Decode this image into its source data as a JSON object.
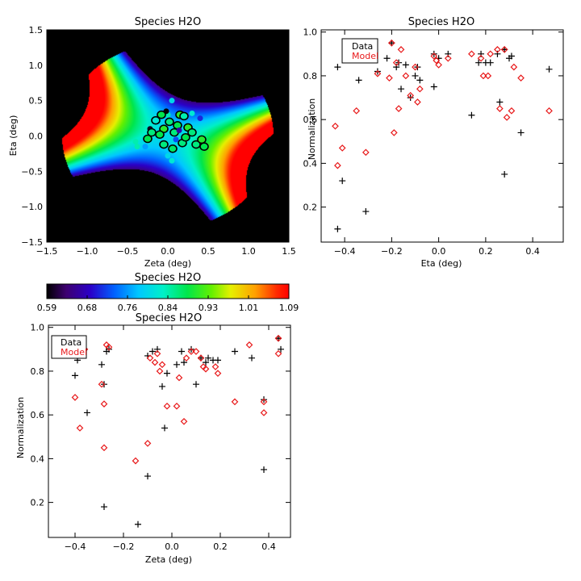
{
  "chart_data": [
    {
      "id": "map",
      "type": "heatmap",
      "title": "Species H2O",
      "xlabel": "Zeta (deg)",
      "ylabel": "Eta (deg)",
      "xlim": [
        -1.5,
        1.5
      ],
      "ylim": [
        -1.5,
        1.5
      ],
      "xticks": [
        -1.5,
        -1.0,
        -0.5,
        0.0,
        0.5,
        1.0,
        1.5
      ],
      "xtick_labels": [
        "−1.5",
        "−1.0",
        "−0.5",
        "0.0",
        "0.5",
        "1.0",
        "1.5"
      ],
      "yticks": [
        -1.5,
        -1.0,
        -0.5,
        0.0,
        0.5,
        1.0,
        1.5
      ],
      "ytick_labels": [
        "−1.5",
        "−1.0",
        "−0.5",
        "0.0",
        "0.5",
        "1.0",
        "1.5"
      ],
      "colorbar": {
        "min": 0.59,
        "max": 1.09,
        "tick_labels": [
          "0.59",
          "0.68",
          "0.76",
          "0.84",
          "0.93",
          "1.01",
          "1.09"
        ]
      },
      "points": [
        {
          "zeta": -0.4,
          "eta": -0.08,
          "value": 0.84
        },
        {
          "zeta": -0.38,
          "eta": -0.15,
          "value": 0.84
        },
        {
          "zeta": -0.3,
          "eta": -0.08,
          "value": 0.8
        },
        {
          "zeta": -0.28,
          "eta": -0.15,
          "value": 0.76
        },
        {
          "zeta": -0.25,
          "eta": -0.04,
          "value": 0.88,
          "ring": true
        },
        {
          "zeta": -0.22,
          "eta": 0.1,
          "value": 0.6
        },
        {
          "zeta": -0.2,
          "eta": 0.05,
          "value": 0.86,
          "ring": true
        },
        {
          "zeta": -0.15,
          "eta": 0.22,
          "value": 0.82,
          "ring": true
        },
        {
          "zeta": -0.05,
          "eta": 0.1,
          "value": 0.9,
          "ring": true
        },
        {
          "zeta": 0.0,
          "eta": 0.3,
          "value": 0.84
        },
        {
          "zeta": -0.02,
          "eta": 0.35,
          "value": 0.59
        },
        {
          "zeta": 0.02,
          "eta": 0.2,
          "value": 0.86,
          "ring": true
        },
        {
          "zeta": 0.05,
          "eta": 0.5,
          "value": 0.8
        },
        {
          "zeta": 0.08,
          "eta": 0.05,
          "value": 0.86,
          "ring": true
        },
        {
          "zeta": 0.1,
          "eta": -0.05,
          "value": 0.72
        },
        {
          "zeta": 0.12,
          "eta": 0.15,
          "value": 0.88,
          "ring": true
        },
        {
          "zeta": 0.15,
          "eta": 0.3,
          "value": 0.9,
          "ring": true
        },
        {
          "zeta": 0.18,
          "eta": -0.1,
          "value": 0.86,
          "ring": true
        },
        {
          "zeta": 0.2,
          "eta": 0.28,
          "value": 0.84,
          "ring": true
        },
        {
          "zeta": 0.22,
          "eta": -0.02,
          "value": 0.88,
          "ring": true
        },
        {
          "zeta": 0.25,
          "eta": 0.12,
          "value": 0.9,
          "ring": true
        },
        {
          "zeta": 0.3,
          "eta": 0.32,
          "value": 0.82
        },
        {
          "zeta": 0.3,
          "eta": 0.05,
          "value": 0.86,
          "ring": true
        },
        {
          "zeta": 0.35,
          "eta": -0.12,
          "value": 0.86,
          "ring": true
        },
        {
          "zeta": 0.4,
          "eta": 0.25,
          "value": 0.7
        },
        {
          "zeta": 0.42,
          "eta": -0.05,
          "value": 0.9,
          "ring": true
        },
        {
          "zeta": 0.45,
          "eta": -0.15,
          "value": 0.88,
          "ring": true
        },
        {
          "zeta": -0.05,
          "eta": -0.12,
          "value": 0.86,
          "ring": true
        },
        {
          "zeta": 0.0,
          "eta": -0.28,
          "value": 0.8
        },
        {
          "zeta": 0.05,
          "eta": -0.35,
          "value": 0.82
        },
        {
          "zeta": -0.1,
          "eta": 0.02,
          "value": 0.88,
          "ring": true
        },
        {
          "zeta": 0.06,
          "eta": -0.18,
          "value": 0.87,
          "ring": true
        },
        {
          "zeta": -0.08,
          "eta": 0.3,
          "value": 0.88,
          "ring": true
        },
        {
          "zeta": 0.14,
          "eta": 0.08,
          "value": 0.66
        }
      ]
    },
    {
      "id": "eta",
      "type": "scatter",
      "title": "Species H2O",
      "xlabel": "Eta (deg)",
      "ylabel": "Normalization",
      "xlim": [
        -0.5,
        0.53
      ],
      "ylim": [
        0.04,
        1.01
      ],
      "xticks": [
        -0.4,
        -0.2,
        0.0,
        0.2,
        0.4
      ],
      "xtick_labels": [
        "−0.4",
        "−0.2",
        "0.0",
        "0.2",
        "0.4"
      ],
      "yticks": [
        0.2,
        0.4,
        0.6,
        0.8,
        1.0
      ],
      "ytick_labels": [
        "0.2",
        "0.4",
        "0.6",
        "0.8",
        "1.0"
      ],
      "legend": {
        "data_label": "Data",
        "model_label": "Model",
        "position": "top-left"
      },
      "series": [
        {
          "name": "Data",
          "marker": "plus",
          "color": "#000000",
          "points": [
            [
              -0.43,
              0.84
            ],
            [
              -0.41,
              0.32
            ],
            [
              -0.43,
              0.1
            ],
            [
              -0.34,
              0.78
            ],
            [
              -0.31,
              0.18
            ],
            [
              -0.26,
              0.82
            ],
            [
              -0.22,
              0.88
            ],
            [
              -0.2,
              0.95
            ],
            [
              -0.18,
              0.84
            ],
            [
              -0.17,
              0.86
            ],
            [
              -0.16,
              0.74
            ],
            [
              -0.14,
              0.85
            ],
            [
              -0.12,
              0.7
            ],
            [
              -0.1,
              0.8
            ],
            [
              -0.09,
              0.84
            ],
            [
              -0.08,
              0.78
            ],
            [
              -0.02,
              0.9
            ],
            [
              -0.02,
              0.75
            ],
            [
              0.0,
              0.88
            ],
            [
              0.04,
              0.9
            ],
            [
              0.14,
              0.62
            ],
            [
              0.17,
              0.86
            ],
            [
              0.18,
              0.9
            ],
            [
              0.2,
              0.86
            ],
            [
              0.22,
              0.86
            ],
            [
              0.25,
              0.9
            ],
            [
              0.26,
              0.68
            ],
            [
              0.28,
              0.92
            ],
            [
              0.28,
              0.35
            ],
            [
              0.3,
              0.88
            ],
            [
              0.31,
              0.89
            ],
            [
              0.35,
              0.54
            ],
            [
              0.47,
              0.83
            ]
          ]
        },
        {
          "name": "Model",
          "marker": "diamond",
          "color": "#e8191a",
          "points": [
            [
              -0.44,
              0.57
            ],
            [
              -0.43,
              0.39
            ],
            [
              -0.41,
              0.47
            ],
            [
              -0.35,
              0.64
            ],
            [
              -0.31,
              0.45
            ],
            [
              -0.26,
              0.81
            ],
            [
              -0.2,
              0.95
            ],
            [
              -0.21,
              0.79
            ],
            [
              -0.19,
              0.54
            ],
            [
              -0.18,
              0.86
            ],
            [
              -0.17,
              0.65
            ],
            [
              -0.16,
              0.92
            ],
            [
              -0.14,
              0.8
            ],
            [
              -0.12,
              0.71
            ],
            [
              -0.1,
              0.84
            ],
            [
              -0.09,
              0.68
            ],
            [
              -0.08,
              0.74
            ],
            [
              -0.02,
              0.89
            ],
            [
              -0.01,
              0.87
            ],
            [
              0.0,
              0.85
            ],
            [
              0.04,
              0.88
            ],
            [
              0.14,
              0.9
            ],
            [
              0.18,
              0.88
            ],
            [
              0.19,
              0.8
            ],
            [
              0.21,
              0.8
            ],
            [
              0.22,
              0.9
            ],
            [
              0.25,
              0.92
            ],
            [
              0.26,
              0.65
            ],
            [
              0.28,
              0.92
            ],
            [
              0.29,
              0.61
            ],
            [
              0.31,
              0.64
            ],
            [
              0.32,
              0.84
            ],
            [
              0.35,
              0.79
            ],
            [
              0.47,
              0.64
            ]
          ]
        }
      ]
    },
    {
      "id": "zeta",
      "type": "scatter",
      "title": "Species H2O",
      "xlabel": "Zeta (deg)",
      "ylabel": "Normalization",
      "xlim": [
        -0.51,
        0.49
      ],
      "ylim": [
        0.04,
        1.01
      ],
      "xticks": [
        -0.4,
        -0.2,
        0.0,
        0.2,
        0.4
      ],
      "xtick_labels": [
        "−0.4",
        "−0.2",
        "0.0",
        "0.2",
        "0.4"
      ],
      "yticks": [
        0.2,
        0.4,
        0.6,
        0.8,
        1.0
      ],
      "ytick_labels": [
        "0.2",
        "0.4",
        "0.6",
        "0.8",
        "1.0"
      ],
      "legend": {
        "data_label": "Data",
        "model_label": "Model",
        "position": "top-left"
      },
      "series": [
        {
          "name": "Data",
          "marker": "plus",
          "color": "#000000",
          "points": [
            [
              -0.4,
              0.78
            ],
            [
              -0.39,
              0.85
            ],
            [
              -0.35,
              0.61
            ],
            [
              -0.29,
              0.83
            ],
            [
              -0.28,
              0.74
            ],
            [
              -0.27,
              0.89
            ],
            [
              -0.26,
              0.9
            ],
            [
              -0.28,
              0.18
            ],
            [
              -0.14,
              0.1
            ],
            [
              -0.1,
              0.32
            ],
            [
              -0.1,
              0.87
            ],
            [
              -0.08,
              0.89
            ],
            [
              -0.06,
              0.9
            ],
            [
              -0.04,
              0.73
            ],
            [
              -0.03,
              0.54
            ],
            [
              -0.02,
              0.79
            ],
            [
              0.02,
              0.83
            ],
            [
              0.04,
              0.89
            ],
            [
              0.05,
              0.84
            ],
            [
              0.08,
              0.9
            ],
            [
              0.1,
              0.74
            ],
            [
              0.12,
              0.86
            ],
            [
              0.14,
              0.84
            ],
            [
              0.15,
              0.86
            ],
            [
              0.17,
              0.85
            ],
            [
              0.19,
              0.85
            ],
            [
              0.26,
              0.89
            ],
            [
              0.33,
              0.86
            ],
            [
              0.38,
              0.67
            ],
            [
              0.38,
              0.35
            ],
            [
              0.44,
              0.95
            ],
            [
              0.45,
              0.9
            ]
          ]
        },
        {
          "name": "Model",
          "marker": "diamond",
          "color": "#e8191a",
          "points": [
            [
              -0.4,
              0.68
            ],
            [
              -0.38,
              0.54
            ],
            [
              -0.36,
              0.9
            ],
            [
              -0.29,
              0.74
            ],
            [
              -0.28,
              0.65
            ],
            [
              -0.28,
              0.45
            ],
            [
              -0.27,
              0.92
            ],
            [
              -0.26,
              0.91
            ],
            [
              -0.15,
              0.39
            ],
            [
              -0.1,
              0.47
            ],
            [
              -0.09,
              0.86
            ],
            [
              -0.07,
              0.84
            ],
            [
              -0.06,
              0.88
            ],
            [
              -0.05,
              0.8
            ],
            [
              -0.04,
              0.83
            ],
            [
              -0.02,
              0.64
            ],
            [
              0.02,
              0.64
            ],
            [
              0.03,
              0.77
            ],
            [
              0.05,
              0.57
            ],
            [
              0.06,
              0.86
            ],
            [
              0.08,
              0.89
            ],
            [
              0.1,
              0.89
            ],
            [
              0.12,
              0.86
            ],
            [
              0.13,
              0.82
            ],
            [
              0.14,
              0.81
            ],
            [
              0.18,
              0.82
            ],
            [
              0.19,
              0.79
            ],
            [
              0.26,
              0.66
            ],
            [
              0.32,
              0.92
            ],
            [
              0.38,
              0.61
            ],
            [
              0.38,
              0.66
            ],
            [
              0.44,
              0.95
            ],
            [
              0.44,
              0.88
            ]
          ]
        }
      ]
    }
  ]
}
